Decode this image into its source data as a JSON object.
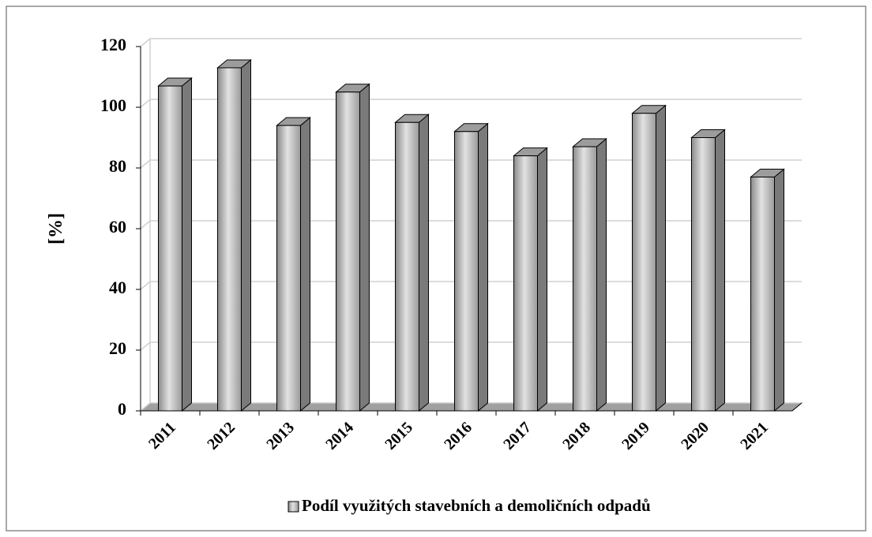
{
  "chart_data": {
    "type": "bar3d",
    "y_label": "[%]",
    "categories": [
      "2011",
      "2012",
      "2013",
      "2014",
      "2015",
      "2016",
      "2017",
      "2018",
      "2019",
      "2020",
      "2021"
    ],
    "series": [
      {
        "name": "Podíl využitých stavebních a demoličních odpadů",
        "color": "#b0b0b0",
        "values": [
          107,
          113,
          94,
          105,
          95,
          92,
          84,
          87,
          98,
          90,
          77
        ]
      }
    ],
    "ylim": [
      0,
      120
    ],
    "yticks": [
      0,
      20,
      40,
      60,
      80,
      100,
      120
    ],
    "grid": true,
    "legend": "bottom"
  }
}
